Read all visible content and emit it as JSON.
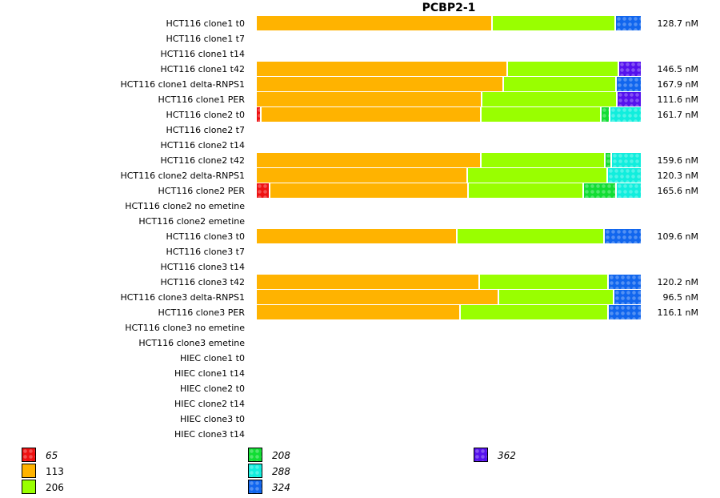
{
  "chart_data": {
    "type": "bar",
    "orientation": "horizontal-stacked-100",
    "title": "PCBP2-1",
    "value_unit": "nM",
    "legend_placement": "bottom",
    "series_meta": [
      {
        "name": "65",
        "color": "#ee1111",
        "patterned": true,
        "italic": true
      },
      {
        "name": "113",
        "color": "#ffb300",
        "patterned": false,
        "italic": false
      },
      {
        "name": "206",
        "color": "#99ff00",
        "patterned": false,
        "italic": false
      },
      {
        "name": "208",
        "color": "#11dd33",
        "patterned": true,
        "italic": true
      },
      {
        "name": "288",
        "color": "#11eedd",
        "patterned": true,
        "italic": true
      },
      {
        "name": "324",
        "color": "#1166ee",
        "patterned": true,
        "italic": true
      },
      {
        "name": "362",
        "color": "#5511ee",
        "patterned": true,
        "italic": true
      }
    ],
    "rows": [
      {
        "label": "HCT116 clone1 t0",
        "value": "128.7 nM",
        "segments": [
          {
            "series": "113",
            "pct": 61.1
          },
          {
            "series": "206",
            "pct": 32.0
          },
          {
            "series": "324",
            "pct": 6.9
          }
        ]
      },
      {
        "label": "HCT116 clone1 t7",
        "value": "",
        "segments": []
      },
      {
        "label": "HCT116 clone1 t14",
        "value": "",
        "segments": []
      },
      {
        "label": "HCT116 clone1 t42",
        "value": "146.5 nM",
        "segments": [
          {
            "series": "113",
            "pct": 65.1
          },
          {
            "series": "206",
            "pct": 28.9
          },
          {
            "series": "362",
            "pct": 6.0
          }
        ]
      },
      {
        "label": "HCT116 clone1 delta-RNPS1",
        "value": "167.9 nM",
        "segments": [
          {
            "series": "113",
            "pct": 64.2
          },
          {
            "series": "206",
            "pct": 29.1
          },
          {
            "series": "324",
            "pct": 6.7
          }
        ]
      },
      {
        "label": "HCT116 clone1 PER",
        "value": "111.6 nM",
        "segments": [
          {
            "series": "113",
            "pct": 58.6
          },
          {
            "series": "206",
            "pct": 34.9
          },
          {
            "series": "362",
            "pct": 6.5
          }
        ]
      },
      {
        "label": "HCT116 clone2 t0",
        "value": "161.7 nM",
        "segments": [
          {
            "series": "65",
            "pct": 1.2
          },
          {
            "series": "113",
            "pct": 57.0
          },
          {
            "series": "206",
            "pct": 31.2
          },
          {
            "series": "208",
            "pct": 2.3
          },
          {
            "series": "288",
            "pct": 8.3
          }
        ]
      },
      {
        "label": "HCT116 clone2 t7",
        "value": "",
        "segments": []
      },
      {
        "label": "HCT116 clone2 t14",
        "value": "",
        "segments": []
      },
      {
        "label": "HCT116 clone2 t42",
        "value": "159.6 nM",
        "segments": [
          {
            "series": "113",
            "pct": 58.2
          },
          {
            "series": "206",
            "pct": 32.2
          },
          {
            "series": "208",
            "pct": 1.7
          },
          {
            "series": "288",
            "pct": 7.9
          }
        ]
      },
      {
        "label": "HCT116 clone2 delta-RNPS1",
        "value": "120.3 nM",
        "segments": [
          {
            "series": "113",
            "pct": 54.7
          },
          {
            "series": "206",
            "pct": 36.4
          },
          {
            "series": "288",
            "pct": 8.9
          }
        ]
      },
      {
        "label": "HCT116 clone2 PER",
        "value": "165.6 nM",
        "segments": [
          {
            "series": "65",
            "pct": 3.5
          },
          {
            "series": "113",
            "pct": 51.4
          },
          {
            "series": "206",
            "pct": 29.9
          },
          {
            "series": "208",
            "pct": 8.5
          },
          {
            "series": "288",
            "pct": 6.7
          }
        ]
      },
      {
        "label": "HCT116 clone2 no emetine",
        "value": "",
        "segments": []
      },
      {
        "label": "HCT116 clone2 emetine",
        "value": "",
        "segments": []
      },
      {
        "label": "HCT116 clone3 t0",
        "value": "109.6 nM",
        "segments": [
          {
            "series": "113",
            "pct": 52.0
          },
          {
            "series": "206",
            "pct": 38.3
          },
          {
            "series": "324",
            "pct": 9.7
          }
        ]
      },
      {
        "label": "HCT116 clone3 t7",
        "value": "",
        "segments": []
      },
      {
        "label": "HCT116 clone3 t14",
        "value": "",
        "segments": []
      },
      {
        "label": "HCT116 clone3 t42",
        "value": "120.2 nM",
        "segments": [
          {
            "series": "113",
            "pct": 57.8
          },
          {
            "series": "206",
            "pct": 33.5
          },
          {
            "series": "324",
            "pct": 8.7
          }
        ]
      },
      {
        "label": "HCT116 clone3 delta-RNPS1",
        "value": "96.5 nM",
        "segments": [
          {
            "series": "113",
            "pct": 62.8
          },
          {
            "series": "206",
            "pct": 29.9
          },
          {
            "series": "324",
            "pct": 7.3
          }
        ]
      },
      {
        "label": "HCT116 clone3 PER",
        "value": "116.1 nM",
        "segments": [
          {
            "series": "113",
            "pct": 53.0
          },
          {
            "series": "206",
            "pct": 38.3
          },
          {
            "series": "324",
            "pct": 8.7
          }
        ]
      },
      {
        "label": "HCT116 clone3 no emetine",
        "value": "",
        "segments": []
      },
      {
        "label": "HCT116 clone3 emetine",
        "value": "",
        "segments": []
      },
      {
        "label": "HIEC clone1 t0",
        "value": "",
        "segments": []
      },
      {
        "label": "HIEC clone1 t14",
        "value": "",
        "segments": []
      },
      {
        "label": "HIEC clone2 t0",
        "value": "",
        "segments": []
      },
      {
        "label": "HIEC clone2 t14",
        "value": "",
        "segments": []
      },
      {
        "label": "HIEC clone3 t0",
        "value": "",
        "segments": []
      },
      {
        "label": "HIEC clone3 t14",
        "value": "",
        "segments": []
      }
    ],
    "legend": [
      {
        "label": "65",
        "series": "65"
      },
      {
        "label": "113",
        "series": "113"
      },
      {
        "label": "206",
        "series": "206"
      },
      {
        "label": "208",
        "series": "208"
      },
      {
        "label": "288",
        "series": "288"
      },
      {
        "label": "324",
        "series": "324"
      },
      {
        "label": "362",
        "series": "362"
      }
    ]
  }
}
